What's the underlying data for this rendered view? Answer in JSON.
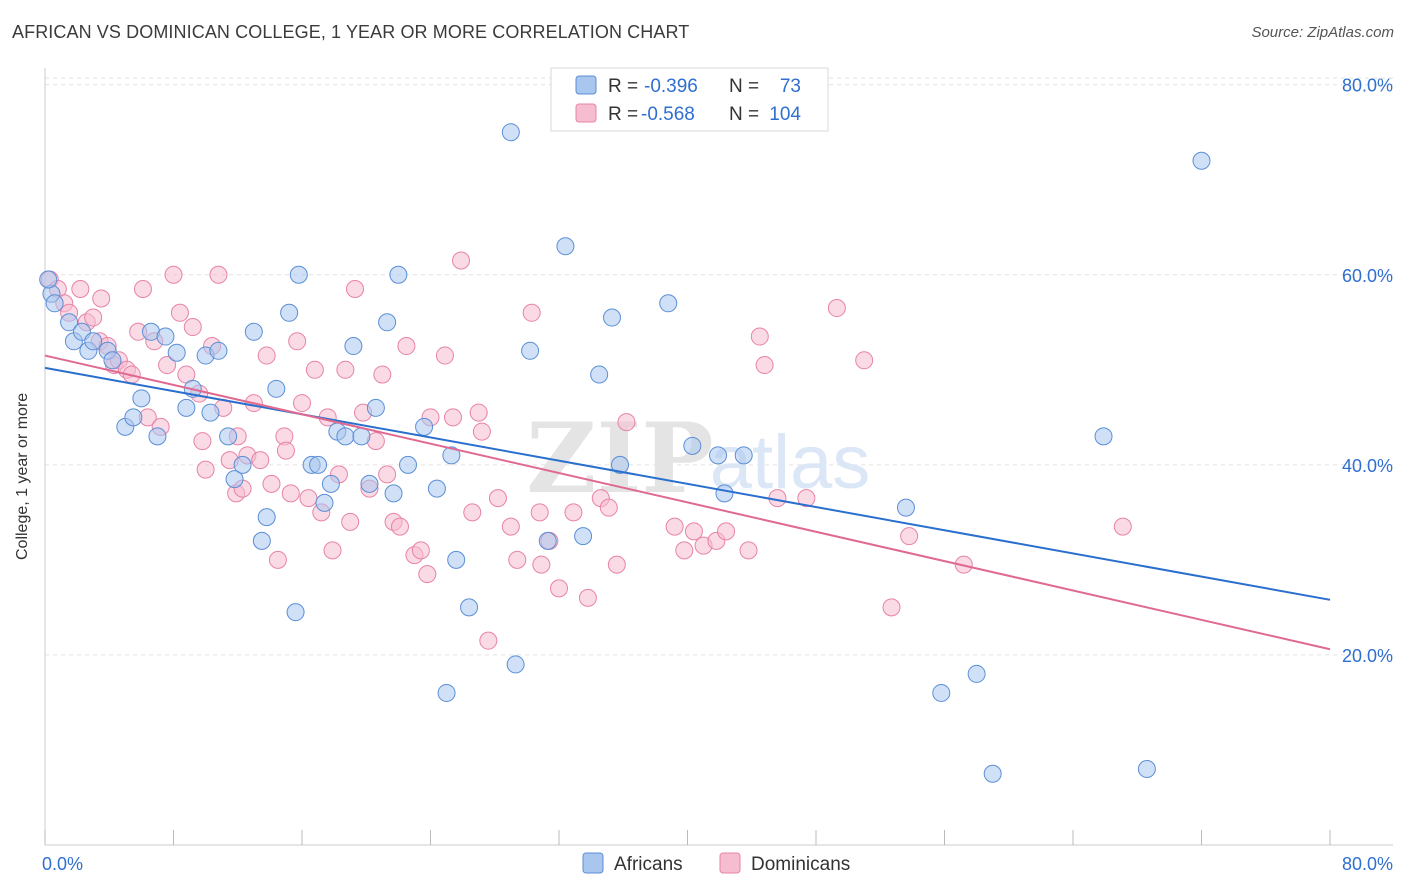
{
  "title": "AFRICAN VS DOMINICAN COLLEGE, 1 YEAR OR MORE CORRELATION CHART",
  "source": "Source: ZipAtlas.com",
  "watermark": {
    "zip": "ZIP",
    "atlas": "atlas"
  },
  "legend_box": {
    "rows": [
      {
        "r_label": "R =",
        "r_value": "-0.396",
        "n_label": "N =",
        "n_value": "73"
      },
      {
        "r_label": "R =",
        "r_value": "-0.568",
        "n_label": "N =",
        "n_value": "104"
      }
    ]
  },
  "colors": {
    "africans_fill": "#a9c6ee",
    "africans_stroke": "#5b8fd6",
    "africans_line": "#2a6fce",
    "dominicans_fill": "#f6bcd0",
    "dominicans_stroke": "#e883a8",
    "dominicans_line": "#e06990",
    "value_text": "#2f6fd0",
    "grid": "#e2e2e2"
  },
  "chart_data": {
    "type": "scatter",
    "title": "AFRICAN VS DOMINICAN COLLEGE, 1 YEAR OR MORE CORRELATION CHART",
    "xlabel": "",
    "ylabel": "College, 1 year or more",
    "xlim": [
      0,
      80
    ],
    "ylim": [
      0,
      82
    ],
    "x_tick_labels": [
      "0.0%",
      "80.0%"
    ],
    "y_tick_labels": [
      "20.0%",
      "40.0%",
      "60.0%",
      "80.0%"
    ],
    "y_ticks": [
      20,
      40,
      60,
      80
    ],
    "grid": true,
    "legend_position": "bottom-center",
    "series": [
      {
        "name": "Africans",
        "trend": {
          "x": [
            0,
            80
          ],
          "y": [
            50.2,
            25.8
          ]
        },
        "points": [
          [
            0.4,
            58.0
          ],
          [
            0.6,
            57.0
          ],
          [
            1.5,
            55.0
          ],
          [
            1.8,
            53.0
          ],
          [
            2.3,
            54.0
          ],
          [
            2.7,
            52.0
          ],
          [
            3.0,
            53.0
          ],
          [
            3.9,
            52.0
          ],
          [
            4.2,
            51.0
          ],
          [
            5.0,
            44.0
          ],
          [
            5.5,
            45.0
          ],
          [
            6.0,
            47.0
          ],
          [
            6.6,
            54.0
          ],
          [
            7.0,
            43.0
          ],
          [
            7.5,
            53.5
          ],
          [
            8.8,
            46.0
          ],
          [
            9.2,
            48.0
          ],
          [
            10.0,
            51.5
          ],
          [
            10.3,
            45.5
          ],
          [
            10.8,
            52.0
          ],
          [
            11.4,
            43.0
          ],
          [
            11.8,
            38.5
          ],
          [
            12.3,
            40.0
          ],
          [
            13.0,
            54.0
          ],
          [
            13.5,
            32.0
          ],
          [
            13.8,
            34.5
          ],
          [
            14.4,
            48.0
          ],
          [
            15.2,
            56.0
          ],
          [
            15.6,
            24.5
          ],
          [
            15.8,
            60.0
          ],
          [
            16.6,
            40.0
          ],
          [
            17.0,
            40.0
          ],
          [
            17.4,
            36.0
          ],
          [
            17.8,
            38.0
          ],
          [
            18.2,
            43.5
          ],
          [
            18.7,
            43.0
          ],
          [
            19.2,
            52.5
          ],
          [
            19.7,
            43.0
          ],
          [
            20.2,
            38.0
          ],
          [
            20.6,
            46.0
          ],
          [
            21.3,
            55.0
          ],
          [
            21.7,
            37.0
          ],
          [
            22.0,
            60.0
          ],
          [
            22.6,
            40.0
          ],
          [
            23.6,
            44.0
          ],
          [
            24.4,
            37.5
          ],
          [
            25.0,
            16.0
          ],
          [
            25.3,
            41.0
          ],
          [
            25.6,
            30.0
          ],
          [
            26.4,
            25.0
          ],
          [
            29.0,
            75.0
          ],
          [
            29.3,
            19.0
          ],
          [
            30.2,
            52.0
          ],
          [
            31.3,
            32.0
          ],
          [
            32.4,
            63.0
          ],
          [
            33.5,
            32.5
          ],
          [
            34.5,
            49.5
          ],
          [
            35.3,
            55.5
          ],
          [
            35.8,
            40.0
          ],
          [
            38.8,
            57.0
          ],
          [
            40.3,
            42.0
          ],
          [
            41.9,
            41.0
          ],
          [
            42.3,
            37.0
          ],
          [
            43.5,
            41.0
          ],
          [
            53.6,
            35.5
          ],
          [
            55.8,
            16.0
          ],
          [
            58.0,
            18.0
          ],
          [
            59.0,
            7.5
          ],
          [
            65.9,
            43.0
          ],
          [
            68.6,
            8.0
          ],
          [
            72.0,
            72.0
          ],
          [
            0.2,
            59.5
          ],
          [
            8.2,
            51.8
          ]
        ]
      },
      {
        "name": "Dominicans",
        "trend": {
          "x": [
            0,
            80
          ],
          "y": [
            51.5,
            20.6
          ]
        },
        "points": [
          [
            0.3,
            59.5
          ],
          [
            0.8,
            58.5
          ],
          [
            1.2,
            57.0
          ],
          [
            1.5,
            56.0
          ],
          [
            2.2,
            58.5
          ],
          [
            2.6,
            55.0
          ],
          [
            3.0,
            55.5
          ],
          [
            3.4,
            53.0
          ],
          [
            3.9,
            52.5
          ],
          [
            4.3,
            50.5
          ],
          [
            4.6,
            51.0
          ],
          [
            5.1,
            50.0
          ],
          [
            5.4,
            49.5
          ],
          [
            5.8,
            54.0
          ],
          [
            6.1,
            58.5
          ],
          [
            6.4,
            45.0
          ],
          [
            6.8,
            53.0
          ],
          [
            7.2,
            44.0
          ],
          [
            7.6,
            50.5
          ],
          [
            8.0,
            60.0
          ],
          [
            8.4,
            56.0
          ],
          [
            8.8,
            49.5
          ],
          [
            9.2,
            54.5
          ],
          [
            9.6,
            47.5
          ],
          [
            10.0,
            39.5
          ],
          [
            10.4,
            52.5
          ],
          [
            10.8,
            60.0
          ],
          [
            11.1,
            46.0
          ],
          [
            11.5,
            40.5
          ],
          [
            11.9,
            37.0
          ],
          [
            12.3,
            37.5
          ],
          [
            12.6,
            41.0
          ],
          [
            13.0,
            46.5
          ],
          [
            13.4,
            40.5
          ],
          [
            13.8,
            51.5
          ],
          [
            14.1,
            38.0
          ],
          [
            14.5,
            30.0
          ],
          [
            14.9,
            43.0
          ],
          [
            15.3,
            37.0
          ],
          [
            15.7,
            53.0
          ],
          [
            16.0,
            46.5
          ],
          [
            16.4,
            36.5
          ],
          [
            16.8,
            50.0
          ],
          [
            17.2,
            35.0
          ],
          [
            17.6,
            45.0
          ],
          [
            17.9,
            31.0
          ],
          [
            18.3,
            39.0
          ],
          [
            18.7,
            50.0
          ],
          [
            19.0,
            34.0
          ],
          [
            19.3,
            58.5
          ],
          [
            19.8,
            45.5
          ],
          [
            20.2,
            37.5
          ],
          [
            20.6,
            42.5
          ],
          [
            21.0,
            49.5
          ],
          [
            21.3,
            39.0
          ],
          [
            21.7,
            34.0
          ],
          [
            22.1,
            33.5
          ],
          [
            22.5,
            52.5
          ],
          [
            23.0,
            30.5
          ],
          [
            23.4,
            31.0
          ],
          [
            23.8,
            28.5
          ],
          [
            24.9,
            51.5
          ],
          [
            25.4,
            45.0
          ],
          [
            25.9,
            61.5
          ],
          [
            26.6,
            35.0
          ],
          [
            27.2,
            43.5
          ],
          [
            27.6,
            21.5
          ],
          [
            28.2,
            36.5
          ],
          [
            29.0,
            33.5
          ],
          [
            29.4,
            30.0
          ],
          [
            30.3,
            56.0
          ],
          [
            30.8,
            35.0
          ],
          [
            31.4,
            32.0
          ],
          [
            32.0,
            27.0
          ],
          [
            32.9,
            35.0
          ],
          [
            33.8,
            26.0
          ],
          [
            34.6,
            36.5
          ],
          [
            35.1,
            35.5
          ],
          [
            35.6,
            29.5
          ],
          [
            36.2,
            44.5
          ],
          [
            39.2,
            33.5
          ],
          [
            40.4,
            33.0
          ],
          [
            41.0,
            31.5
          ],
          [
            41.8,
            32.0
          ],
          [
            42.4,
            33.0
          ],
          [
            43.8,
            31.0
          ],
          [
            44.5,
            53.5
          ],
          [
            44.8,
            50.5
          ],
          [
            45.6,
            36.5
          ],
          [
            47.4,
            36.5
          ],
          [
            49.3,
            56.5
          ],
          [
            51.0,
            51.0
          ],
          [
            52.7,
            25.0
          ],
          [
            53.8,
            32.5
          ],
          [
            57.2,
            29.5
          ],
          [
            67.1,
            33.5
          ],
          [
            3.5,
            57.5
          ],
          [
            9.8,
            42.5
          ],
          [
            12.0,
            43.0
          ],
          [
            15.0,
            41.5
          ],
          [
            24.0,
            45.0
          ],
          [
            27.0,
            45.5
          ],
          [
            30.9,
            29.5
          ],
          [
            39.8,
            31.0
          ]
        ]
      }
    ]
  },
  "legend": {
    "items": [
      "Africans",
      "Dominicans"
    ]
  }
}
